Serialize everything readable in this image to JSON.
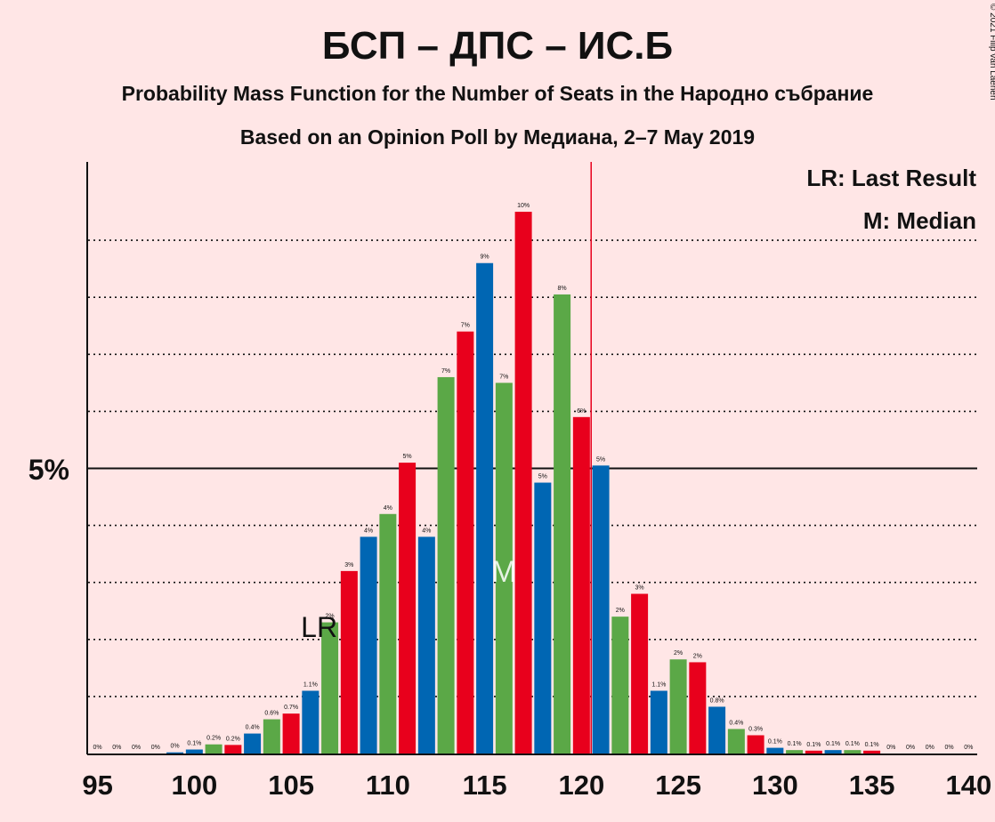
{
  "title": "БСП – ДПС – ИС.Б",
  "subtitle1": "Probability Mass Function for the Number of Seats in the Народно събрание",
  "subtitle2": "Based on an Opinion Poll by Медиана, 2–7 May 2019",
  "copyright": "© 2021 Filip van Laenen",
  "legend": {
    "last_result": "LR: Last Result",
    "median": "M: Median"
  },
  "marker_labels": {
    "last_result": "LR",
    "median": "M"
  },
  "y_tick_label": "5%",
  "colors": {
    "background": "#FFE6E6",
    "blue": "#0066B3",
    "green": "#5BA847",
    "red": "#E8001C",
    "last_result_line": "#E8001C"
  },
  "chart_data": {
    "type": "bar",
    "x": [
      95,
      96,
      97,
      98,
      99,
      100,
      101,
      102,
      103,
      104,
      105,
      106,
      107,
      108,
      109,
      110,
      111,
      112,
      113,
      114,
      115,
      116,
      117,
      118,
      119,
      120,
      121,
      122,
      123,
      124,
      125,
      126,
      127,
      128,
      129,
      130,
      131,
      132,
      133,
      134,
      135,
      136,
      137,
      138,
      139,
      140
    ],
    "values": [
      0,
      0,
      0,
      0,
      0.02,
      0.07,
      0.16,
      0.15,
      0.35,
      0.6,
      0.7,
      1.1,
      2.3,
      3.2,
      3.8,
      4.2,
      5.1,
      3.8,
      6.6,
      7.4,
      8.6,
      6.5,
      9.5,
      4.75,
      8.05,
      5.9,
      5.05,
      2.4,
      2.8,
      1.1,
      1.65,
      1.6,
      0.82,
      0.43,
      0.32,
      0.1,
      0.06,
      0.05,
      0.06,
      0.06,
      0.05,
      0,
      0,
      0,
      0,
      0
    ],
    "labels": [
      "0%",
      "0%",
      "0%",
      "0%",
      "0%",
      "0.1%",
      "0.2%",
      "0.2%",
      "0.4%",
      "0.6%",
      "0.7%",
      "1.1%",
      "2%",
      "3%",
      "4%",
      "4%",
      "5%",
      "4%",
      "7%",
      "7%",
      "9%",
      "7%",
      "10%",
      "5%",
      "8%",
      "6%",
      "5%",
      "2%",
      "3%",
      "1.1%",
      "2%",
      "2%",
      "0.8%",
      "0.4%",
      "0.3%",
      "0.1%",
      "0.1%",
      "0.1%",
      "0.1%",
      "0.1%",
      "0.1%",
      "0%",
      "0%",
      "0%",
      "0%",
      "0%"
    ],
    "bar_colors": [
      "blue",
      "blue",
      "green",
      "red",
      "blue",
      "blue",
      "green",
      "red",
      "blue",
      "green",
      "red",
      "blue",
      "green",
      "red",
      "blue",
      "green",
      "red",
      "blue",
      "green",
      "red",
      "blue",
      "green",
      "red",
      "blue",
      "green",
      "red",
      "blue",
      "green",
      "red",
      "blue",
      "green",
      "red",
      "blue",
      "green",
      "red",
      "blue",
      "green",
      "red",
      "blue",
      "green",
      "red",
      "blue",
      "green",
      "red",
      "blue",
      "green"
    ],
    "x_ticks": [
      "95",
      "100",
      "105",
      "110",
      "115",
      "120",
      "125",
      "130",
      "135",
      "140"
    ],
    "y_range": [
      0,
      10
    ],
    "gridlines_percent": [
      1,
      2,
      3,
      4,
      6,
      7,
      8,
      9
    ],
    "major_line_percent": 5,
    "last_result_seats": 107,
    "median_seats": 116,
    "last_result_line_seats": 120.5
  }
}
